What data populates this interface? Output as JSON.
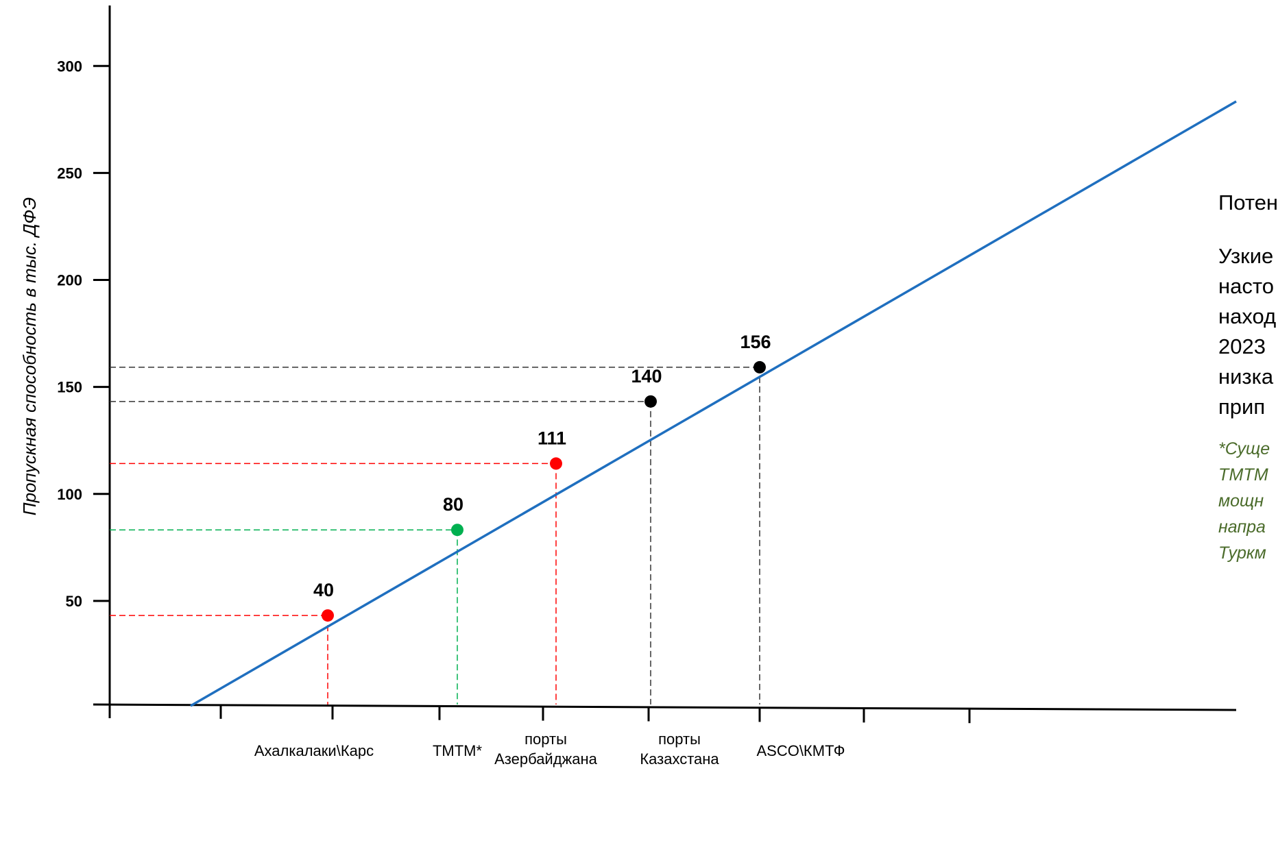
{
  "chart_data": {
    "type": "line",
    "ylabel": "Пропускная способность в тыс. ДФЭ",
    "xlabel": "",
    "yticks": [
      50,
      100,
      150,
      200,
      250,
      300
    ],
    "ylim": [
      0,
      320
    ],
    "categories": [
      "",
      "Ахалкалаки\\Карс",
      "ТМТМ*",
      "порты Азербайджана",
      "порты Казахстана",
      "ASCO\\КМТФ",
      "",
      ""
    ],
    "category_lines": [
      [
        "Ахалкалаки\\Карс"
      ],
      [
        "ТМТМ*"
      ],
      [
        "порты",
        "Азербайджана"
      ],
      [
        "порты",
        "Казахстана"
      ],
      [
        "ASCO\\КМТФ"
      ]
    ],
    "points": [
      {
        "label": "Ахалкалаки\\Карс",
        "value": 40,
        "color": "#ff0000"
      },
      {
        "label": "ТМТМ*",
        "value": 80,
        "color": "#00b050"
      },
      {
        "label": "порты Азербайджана",
        "value": 111,
        "color": "#ff0000"
      },
      {
        "label": "порты Казахстана",
        "value": 140,
        "color": "#000000"
      },
      {
        "label": "ASCO\\КМТФ",
        "value": 156,
        "color": "#000000"
      }
    ],
    "line_color": "#1f6fbf",
    "grid": false,
    "legend": "none"
  },
  "side_panel": {
    "line1": "Потен",
    "para_lines": [
      "Узкие",
      "насто",
      "наход",
      "2023",
      "низка",
      "прип"
    ],
    "note_lines": [
      "*Суще",
      "ТМТМ",
      "мощн",
      "напра",
      "Туркм"
    ],
    "note_color": "#4a6b2a"
  }
}
